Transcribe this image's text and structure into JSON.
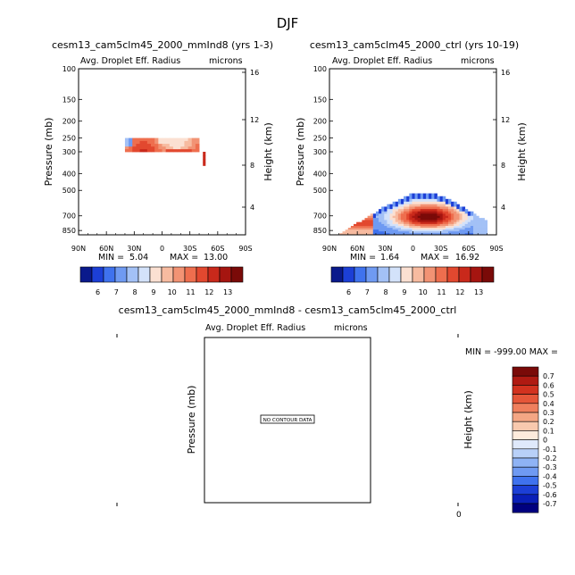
{
  "figure_title": "DJF",
  "colors": {
    "blue_scale": [
      "#0a1a8c",
      "#1c3fd6",
      "#3f72ee",
      "#6f9af2",
      "#a3c1f6",
      "#d3e2fa"
    ],
    "red_scale": [
      "#fbe0d2",
      "#f7bba0",
      "#f29374",
      "#ee6e4e",
      "#e2482f",
      "#c9291b",
      "#a51510",
      "#7a0a08"
    ],
    "diff_scale": [
      "#00007f",
      "#0a1fb8",
      "#1c3fd6",
      "#3f72ee",
      "#6f9af2",
      "#8fb3f5",
      "#b8d0f8",
      "#dfe9fb",
      "#fdebdc",
      "#f8c9ae",
      "#f4a684",
      "#ef7f5d",
      "#e55639",
      "#d2321f",
      "#b01a12",
      "#7a0a08"
    ]
  },
  "chart_data": [
    {
      "type": "heatmap",
      "id": "panel1",
      "title": "cesm13_cam5clm45_2000_mmInd8 (yrs 1-3)",
      "variable": "Avg. Droplet Eff. Radius",
      "units": "microns",
      "ylabel": "Pressure (mb)",
      "y2label": "Height (km)",
      "xticks": [
        "90N",
        "60N",
        "30N",
        "0",
        "30S",
        "60S",
        "90S"
      ],
      "yticks": [
        "100",
        "150",
        "200",
        "250",
        "300",
        "400",
        "500",
        "700",
        "850"
      ],
      "y2ticks": [
        "16",
        "12",
        "8",
        "4"
      ],
      "min_text": "MIN =",
      "min_value": "5.04",
      "max_text": "MAX =",
      "max_value": "13.00",
      "colorbar_levels": [
        "6",
        "7",
        "8",
        "9",
        "10",
        "11",
        "12",
        "13"
      ],
      "region": {
        "lat_from": 40,
        "lat_to": -40,
        "p_top": 250,
        "p_bottom": 300,
        "typical_value": 10.5
      }
    },
    {
      "type": "heatmap",
      "id": "panel2",
      "title": "cesm13_cam5clm45_2000_ctrl (yrs 10-19)",
      "variable": "Avg. Droplet Eff. Radius",
      "units": "microns",
      "ylabel": "Pressure (mb)",
      "y2label": "Height (km)",
      "xticks": [
        "90N",
        "60N",
        "30N",
        "0",
        "30S",
        "60S",
        "90S"
      ],
      "yticks": [
        "100",
        "150",
        "200",
        "250",
        "300",
        "400",
        "500",
        "700",
        "850"
      ],
      "y2ticks": [
        "16",
        "12",
        "8",
        "4"
      ],
      "min_text": "MIN =",
      "min_value": "1.64",
      "max_text": "MAX =",
      "max_value": "16.92",
      "colorbar_levels": [
        "6",
        "7",
        "8",
        "9",
        "10",
        "11",
        "12",
        "13"
      ],
      "region": {
        "shape": "low-level cloud dome",
        "lat_from": 82,
        "lat_to": -80,
        "p_top": 500,
        "p_bottom": 900,
        "max_near_lat": -15,
        "max_near_p": 700
      }
    },
    {
      "type": "heatmap",
      "id": "panel3",
      "title": "cesm13_cam5clm45_2000_mmInd8 - cesm13_cam5clm45_2000_ctrl",
      "variable": "Avg. Droplet Eff. Radius",
      "units": "microns",
      "ylabel": "Pressure (mb)",
      "y2label": "Height (km)",
      "no_data_label": "NO CONTOUR DATA",
      "min_max_text": "MIN = -999.00  MAX =",
      "zero_label": "0",
      "colorbar_levels": [
        "0.7",
        "0.6",
        "0.5",
        "0.4",
        "0.3",
        "0.2",
        "0.1",
        "0",
        "-0.1",
        "-0.2",
        "-0.3",
        "-0.4",
        "-0.5",
        "-0.6",
        "-0.7"
      ]
    }
  ]
}
